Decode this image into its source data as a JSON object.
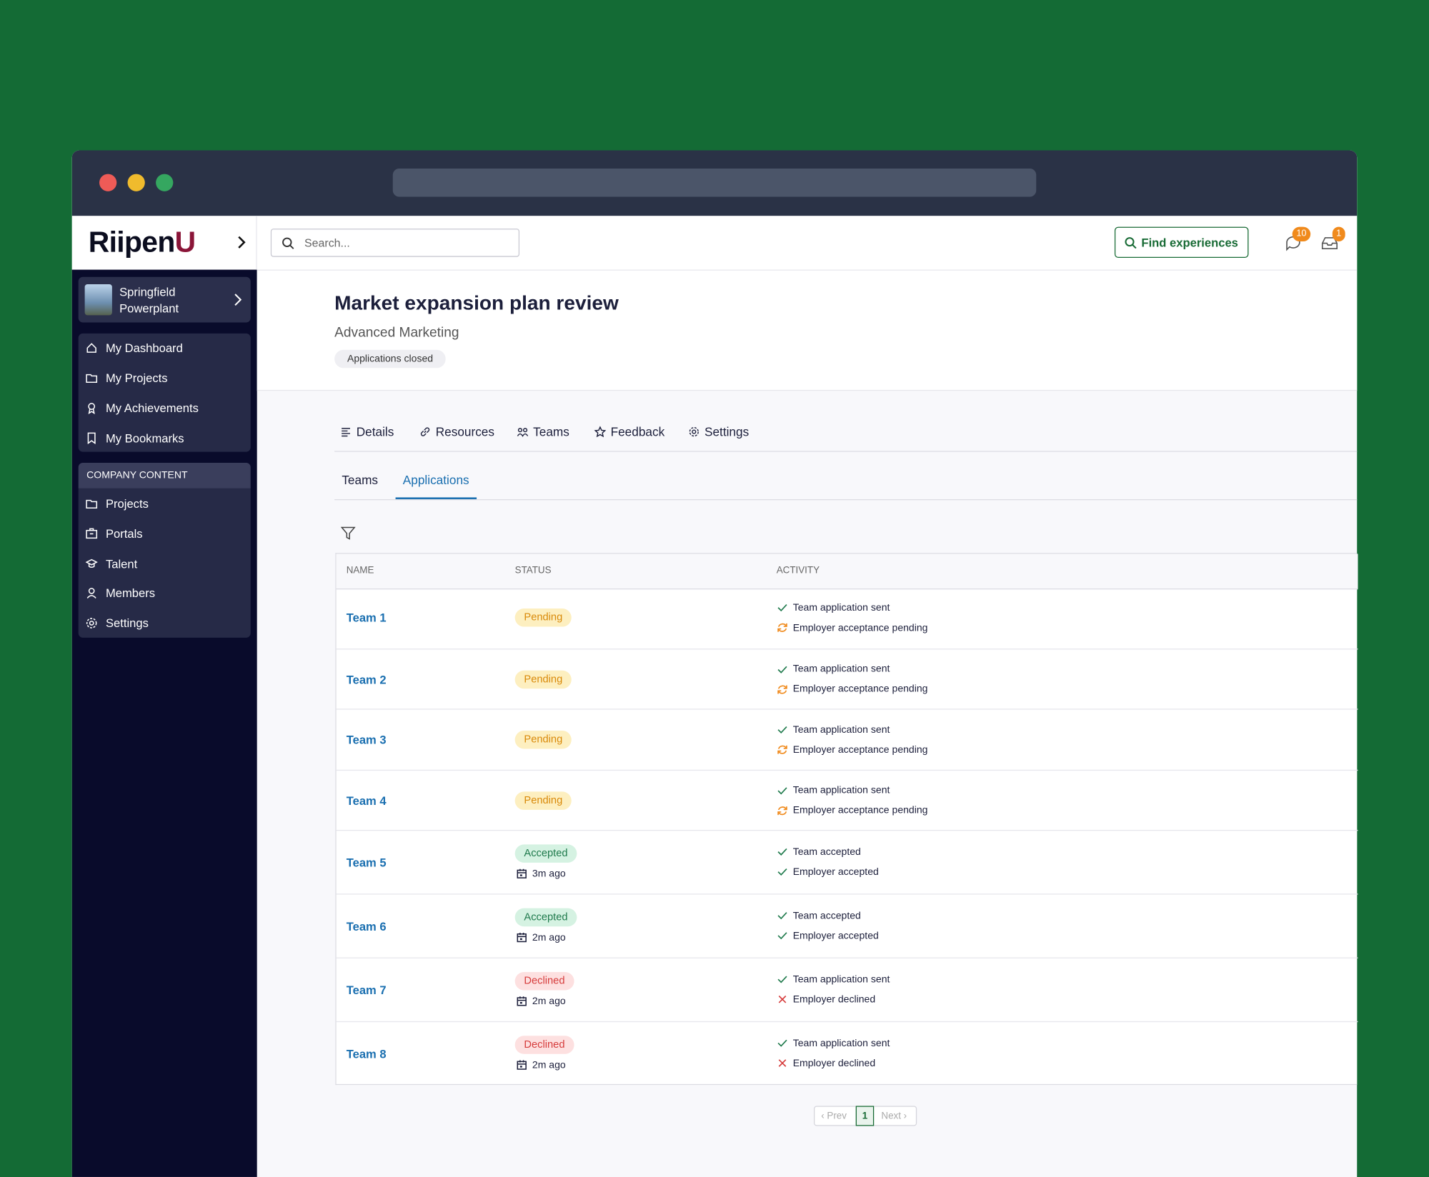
{
  "logo": {
    "main": "Riipen",
    "accent": "U"
  },
  "search_placeholder": "Search...",
  "find_button": "Find experiences",
  "badges": {
    "messages": 10,
    "inbox": 1
  },
  "organization": "Springfield Powerplant",
  "nav": [
    "My Dashboard",
    "My Projects",
    "My Achievements",
    "My Bookmarks"
  ],
  "company_section": "COMPANY CONTENT",
  "company_nav": [
    "Projects",
    "Portals",
    "Talent",
    "Members",
    "Settings"
  ],
  "project": {
    "title": "Market expansion plan review",
    "course": "Advanced Marketing",
    "status": "Applications closed"
  },
  "tabs": [
    "Details",
    "Resources",
    "Teams",
    "Feedback",
    "Settings"
  ],
  "subtabs": {
    "items": [
      "Teams",
      "Applications"
    ],
    "active": 1
  },
  "table": {
    "columns": [
      "NAME",
      "STATUS",
      "ACTIVITY"
    ],
    "rows": [
      {
        "name": "Team 1",
        "status": "Pending",
        "tone": "warning",
        "activity": [
          {
            "text": "Team application sent",
            "icon": "check"
          },
          {
            "text": "Employer acceptance pending",
            "icon": "sync"
          }
        ]
      },
      {
        "name": "Team 2",
        "status": "Pending",
        "tone": "warning",
        "activity": [
          {
            "text": "Team application sent",
            "icon": "check"
          },
          {
            "text": "Employer acceptance pending",
            "icon": "sync"
          }
        ]
      },
      {
        "name": "Team 3",
        "status": "Pending",
        "tone": "warning",
        "activity": [
          {
            "text": "Team application sent",
            "icon": "check"
          },
          {
            "text": "Employer acceptance pending",
            "icon": "sync"
          }
        ]
      },
      {
        "name": "Team 4",
        "status": "Pending",
        "tone": "warning",
        "activity": [
          {
            "text": "Team application sent",
            "icon": "check"
          },
          {
            "text": "Employer acceptance pending",
            "icon": "sync"
          }
        ]
      },
      {
        "name": "Team 5",
        "status": "Accepted",
        "tone": "success",
        "time": "3m ago",
        "activity": [
          {
            "text": "Team accepted",
            "icon": "check"
          },
          {
            "text": "Employer accepted",
            "icon": "check"
          }
        ]
      },
      {
        "name": "Team 6",
        "status": "Accepted",
        "tone": "success",
        "time": "2m ago",
        "activity": [
          {
            "text": "Team accepted",
            "icon": "check"
          },
          {
            "text": "Employer accepted",
            "icon": "check"
          }
        ]
      },
      {
        "name": "Team 7",
        "status": "Declined",
        "tone": "danger",
        "time": "2m ago",
        "activity": [
          {
            "text": "Team application sent",
            "icon": "check"
          },
          {
            "text": "Employer declined",
            "icon": "cross"
          }
        ]
      },
      {
        "name": "Team 8",
        "status": "Declined",
        "tone": "danger",
        "time": "2m ago",
        "activity": [
          {
            "text": "Team application sent",
            "icon": "check"
          },
          {
            "text": "Employer declined",
            "icon": "cross"
          }
        ]
      }
    ]
  },
  "pagination": {
    "prev": "‹ Prev",
    "page": 1,
    "next": "Next ›"
  }
}
